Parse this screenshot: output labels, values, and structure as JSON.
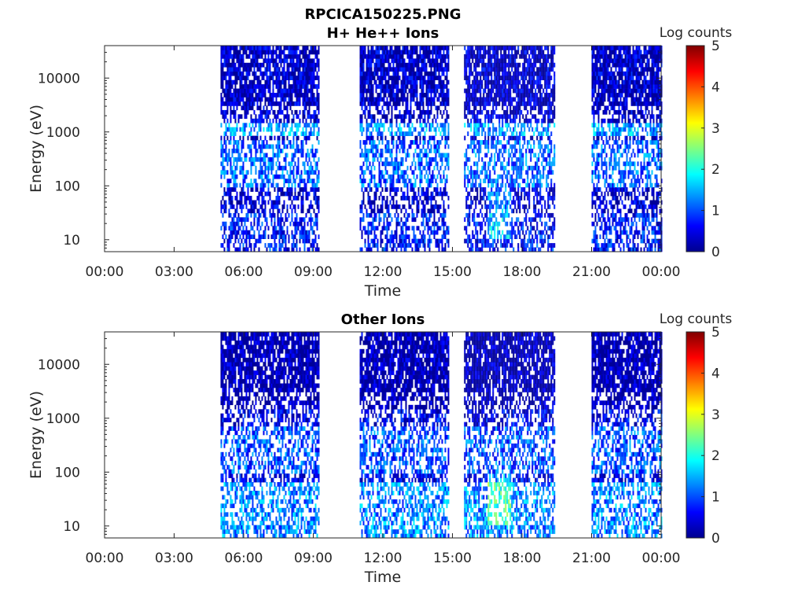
{
  "figure_title": "RPCICA150225.PNG",
  "colormap": [
    "#00008f",
    "#0000ff",
    "#0080ff",
    "#00ffff",
    "#80ff80",
    "#ffff00",
    "#ff8000",
    "#ff0000",
    "#800000"
  ],
  "chart_data": [
    {
      "type": "heatmap",
      "title": "H+ He++ Ions",
      "xlabel": "Time",
      "ylabel": "Energy (eV)",
      "x_ticks": [
        "00:00",
        "03:00",
        "06:00",
        "09:00",
        "12:00",
        "15:00",
        "18:00",
        "21:00",
        "00:00"
      ],
      "x_range_hours": [
        0,
        24
      ],
      "y_scale": "log",
      "y_ticks": [
        "10",
        "100",
        "1000",
        "10000"
      ],
      "y_range_eV": [
        6,
        40000
      ],
      "colorbar": {
        "label": "Log counts",
        "ticks": [
          "0",
          "1",
          "2",
          "3",
          "4",
          "5"
        ],
        "range": [
          0,
          5
        ]
      },
      "data_intervals_hours": [
        [
          5.0,
          9.25
        ],
        [
          11.0,
          14.85
        ],
        [
          15.5,
          19.4
        ],
        [
          21.0,
          24.0
        ]
      ]
    },
    {
      "type": "heatmap",
      "title": "Other Ions",
      "xlabel": "Time",
      "ylabel": "Energy (eV)",
      "x_ticks": [
        "00:00",
        "03:00",
        "06:00",
        "09:00",
        "12:00",
        "15:00",
        "18:00",
        "21:00",
        "00:00"
      ],
      "x_range_hours": [
        0,
        24
      ],
      "y_scale": "log",
      "y_ticks": [
        "10",
        "100",
        "1000",
        "10000"
      ],
      "y_range_eV": [
        6,
        40000
      ],
      "colorbar": {
        "label": "Log counts",
        "ticks": [
          "0",
          "1",
          "2",
          "3",
          "4",
          "5"
        ],
        "range": [
          0,
          5
        ]
      },
      "data_intervals_hours": [
        [
          5.0,
          9.25
        ],
        [
          11.0,
          14.85
        ],
        [
          15.5,
          19.4
        ],
        [
          21.0,
          24.0
        ]
      ]
    }
  ]
}
